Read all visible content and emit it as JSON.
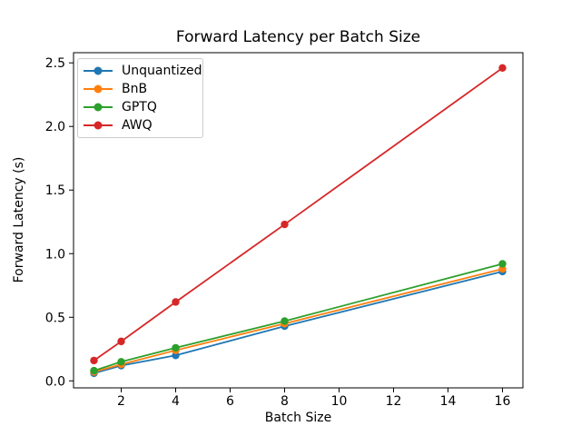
{
  "figure": {
    "background": "#ffffff",
    "text_color": "#000000",
    "spine_color": "#000000",
    "legend_border_color": "#cccccc"
  },
  "chart_data": {
    "type": "line",
    "title": "Forward Latency per Batch Size",
    "xlabel": "Batch Size",
    "ylabel": "Forward Latency (s)",
    "x": [
      1,
      2,
      4,
      8,
      16
    ],
    "series": [
      {
        "name": "Unquantized",
        "color": "#1f77b4",
        "values": [
          0.06,
          0.12,
          0.2,
          0.43,
          0.86
        ]
      },
      {
        "name": "BnB",
        "color": "#ff7f0e",
        "values": [
          0.07,
          0.13,
          0.24,
          0.45,
          0.88
        ]
      },
      {
        "name": "GPTQ",
        "color": "#2ca02c",
        "values": [
          0.08,
          0.15,
          0.26,
          0.47,
          0.92
        ]
      },
      {
        "name": "AWQ",
        "color": "#d62728",
        "values": [
          0.16,
          0.31,
          0.62,
          1.23,
          2.46
        ]
      }
    ],
    "xlim": [
      0.25,
      16.75
    ],
    "ylim": [
      -0.055,
      2.58
    ],
    "xticks": [
      "2",
      "4",
      "6",
      "8",
      "10",
      "12",
      "14",
      "16"
    ],
    "yticks": [
      "0.0",
      "0.5",
      "1.0",
      "1.5",
      "2.0",
      "2.5"
    ],
    "grid": false,
    "legend_position": "upper left",
    "marker": "o"
  }
}
